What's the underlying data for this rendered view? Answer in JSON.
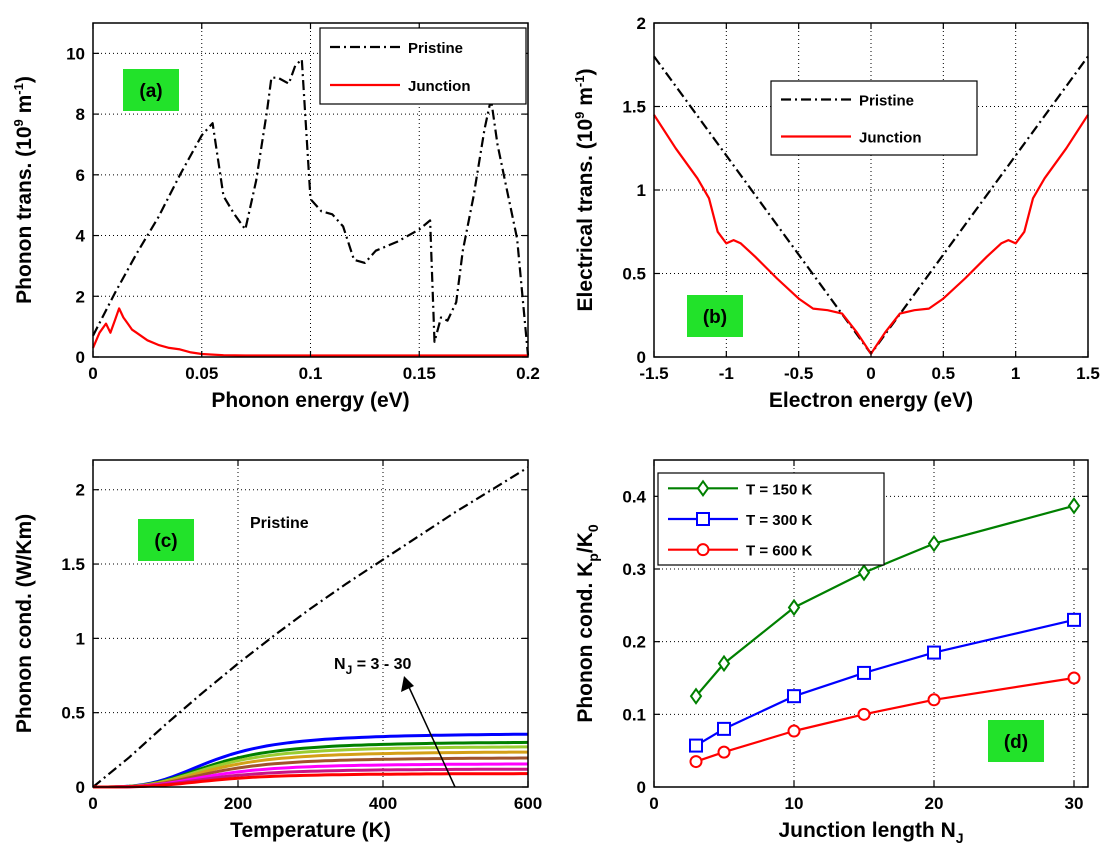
{
  "chart_data": [
    {
      "id": "a",
      "type": "line",
      "panel_label": "(a)",
      "xlabel": "Phonon energy (eV)",
      "ylabel": "Phonon trans. (10^9 m^-1)",
      "ylabel_parts": {
        "main": "Phonon trans. (10",
        "exp1": "9",
        "mid": " m",
        "exp2": "-1",
        "end": ")"
      },
      "xlim": [
        0,
        0.2
      ],
      "ylim": [
        0,
        11
      ],
      "xticks": [
        0,
        0.05,
        0.1,
        0.15,
        0.2
      ],
      "xtick_labels": [
        "0",
        "0.05",
        "0.1",
        "0.15",
        "0.2"
      ],
      "yticks": [
        0,
        2,
        4,
        6,
        8,
        10
      ],
      "ytick_labels": [
        "0",
        "2",
        "4",
        "6",
        "8",
        "10"
      ],
      "grid": true,
      "legend_position": "top-right",
      "series": [
        {
          "name": "Pristine",
          "color": "#000000",
          "dash": "dashdot",
          "x": [
            0,
            0.005,
            0.01,
            0.02,
            0.03,
            0.04,
            0.05,
            0.055,
            0.06,
            0.065,
            0.07,
            0.075,
            0.08,
            0.082,
            0.085,
            0.09,
            0.093,
            0.096,
            0.1,
            0.105,
            0.11,
            0.115,
            0.12,
            0.125,
            0.13,
            0.14,
            0.15,
            0.155,
            0.157,
            0.16,
            0.163,
            0.167,
            0.17,
            0.175,
            0.18,
            0.183,
            0.186,
            0.19,
            0.195,
            0.2
          ],
          "y": [
            0.7,
            1.4,
            2.1,
            3.4,
            4.6,
            6.0,
            7.3,
            7.7,
            5.3,
            4.7,
            4.2,
            5.8,
            8.1,
            9.2,
            9.2,
            9.0,
            9.6,
            9.8,
            5.2,
            4.8,
            4.7,
            4.3,
            3.2,
            3.1,
            3.5,
            3.8,
            4.2,
            4.5,
            0.5,
            1.3,
            1.2,
            1.8,
            3.5,
            5.3,
            7.5,
            8.5,
            7.0,
            5.6,
            3.9,
            0.05
          ]
        },
        {
          "name": "Junction",
          "color": "#ff0000",
          "dash": "solid",
          "x": [
            0,
            0.003,
            0.006,
            0.008,
            0.01,
            0.012,
            0.014,
            0.016,
            0.018,
            0.02,
            0.025,
            0.03,
            0.035,
            0.04,
            0.045,
            0.05,
            0.055,
            0.06,
            0.07,
            0.1,
            0.15,
            0.2
          ],
          "y": [
            0.3,
            0.8,
            1.1,
            0.8,
            1.2,
            1.6,
            1.3,
            1.1,
            0.9,
            0.8,
            0.55,
            0.4,
            0.3,
            0.25,
            0.15,
            0.1,
            0.08,
            0.06,
            0.05,
            0.05,
            0.05,
            0.05
          ]
        }
      ]
    },
    {
      "id": "b",
      "type": "line",
      "panel_label": "(b)",
      "xlabel": "Electron energy (eV)",
      "ylabel": "Electrical trans. (10^9 m^-1)",
      "ylabel_parts": {
        "main": "Electrical trans. (10",
        "exp1": "9",
        "mid": " m",
        "exp2": "-1",
        "end": ")"
      },
      "xlim": [
        -1.5,
        1.5
      ],
      "ylim": [
        0,
        2
      ],
      "xticks": [
        -1.5,
        -1,
        -0.5,
        0,
        0.5,
        1,
        1.5
      ],
      "xtick_labels": [
        "-1.5",
        "-1",
        "-0.5",
        "0",
        "0.5",
        "1",
        "1.5"
      ],
      "yticks": [
        0,
        0.5,
        1,
        1.5,
        2
      ],
      "ytick_labels": [
        "0",
        "0.5",
        "1",
        "1.5",
        "2"
      ],
      "grid": true,
      "legend_position": "top-right",
      "series": [
        {
          "name": "Pristine",
          "color": "#000000",
          "dash": "dashdot",
          "x": [
            -1.5,
            0,
            1.5
          ],
          "y": [
            1.8,
            0.02,
            1.8
          ]
        },
        {
          "name": "Junction",
          "color": "#ff0000",
          "dash": "solid",
          "x": [
            -1.5,
            -1.35,
            -1.2,
            -1.12,
            -1.06,
            -1.0,
            -0.95,
            -0.9,
            -0.8,
            -0.65,
            -0.5,
            -0.4,
            -0.3,
            -0.2,
            -0.1,
            0,
            0.1,
            0.2,
            0.3,
            0.4,
            0.5,
            0.65,
            0.8,
            0.9,
            0.95,
            1.0,
            1.06,
            1.12,
            1.2,
            1.35,
            1.5
          ],
          "y": [
            1.45,
            1.25,
            1.07,
            0.95,
            0.75,
            0.68,
            0.7,
            0.68,
            0.6,
            0.47,
            0.35,
            0.29,
            0.28,
            0.26,
            0.15,
            0.02,
            0.15,
            0.26,
            0.28,
            0.29,
            0.35,
            0.47,
            0.6,
            0.68,
            0.7,
            0.68,
            0.75,
            0.95,
            1.07,
            1.25,
            1.45
          ]
        }
      ]
    },
    {
      "id": "c",
      "type": "line",
      "panel_label": "(c)",
      "xlabel": "Temperature (K)",
      "ylabel": "Phonon cond. (W/Km)",
      "xlim": [
        0,
        600
      ],
      "ylim": [
        0,
        2.2
      ],
      "xticks": [
        0,
        200,
        400,
        600
      ],
      "xtick_labels": [
        "0",
        "200",
        "400",
        "600"
      ],
      "yticks": [
        0,
        0.5,
        1,
        1.5,
        2
      ],
      "ytick_labels": [
        "0",
        "0.5",
        "1",
        "1.5",
        "2"
      ],
      "grid": true,
      "text_labels": [
        "Pristine"
      ],
      "arrow_annotation": {
        "text": "N_J = 3 - 30",
        "prefix": "N",
        "sub": "J",
        "suffix": " = 3 - 30"
      },
      "series": [
        {
          "name": "Pristine",
          "color": "#000000",
          "dash": "dashdot",
          "x": [
            0,
            50,
            100,
            150,
            200,
            250,
            300,
            350,
            400,
            450,
            500,
            550,
            600
          ],
          "y": [
            0,
            0.2,
            0.42,
            0.63,
            0.83,
            1.02,
            1.2,
            1.37,
            1.53,
            1.69,
            1.85,
            2.0,
            2.15
          ]
        },
        {
          "name": "N_J = 3",
          "color": "#0000ff",
          "dash": "solid",
          "plateau": 0.355
        },
        {
          "name": "",
          "color": "#008000",
          "dash": "solid",
          "plateau": 0.3
        },
        {
          "name": "",
          "color": "#9acd32",
          "dash": "solid",
          "plateau": 0.27
        },
        {
          "name": "",
          "color": "#d4a017",
          "dash": "solid",
          "plateau": 0.235
        },
        {
          "name": "",
          "color": "#a0522d",
          "dash": "solid",
          "plateau": 0.195
        },
        {
          "name": "",
          "color": "#ff00ff",
          "dash": "solid",
          "plateau": 0.155
        },
        {
          "name": "",
          "color": "#c71585",
          "dash": "solid",
          "plateau": 0.12
        },
        {
          "name": "N_J = 30",
          "color": "#ff0000",
          "dash": "solid",
          "plateau": 0.09
        }
      ]
    },
    {
      "id": "d",
      "type": "line",
      "panel_label": "(d)",
      "xlabel": "Junction length N_J",
      "xlabel_parts": {
        "main": "Junction length N",
        "sub": "J"
      },
      "ylabel": "Phonon cond. K_p/K_0",
      "ylabel_parts": {
        "main": "Phonon cond. K",
        "sub1": "p",
        "mid": "/K",
        "sub2": "0"
      },
      "xlim": [
        0,
        31
      ],
      "ylim": [
        0,
        0.45
      ],
      "xticks": [
        0,
        10,
        20,
        30
      ],
      "xtick_labels": [
        "0",
        "10",
        "20",
        "30"
      ],
      "yticks": [
        0,
        0.1,
        0.2,
        0.3,
        0.4
      ],
      "ytick_labels": [
        "0",
        "0.1",
        "0.2",
        "0.3",
        "0.4"
      ],
      "grid": true,
      "legend_position": "top-left",
      "series": [
        {
          "name": "T = 150 K",
          "color": "#008000",
          "marker": "diamond",
          "x": [
            3,
            5,
            10,
            15,
            20,
            30
          ],
          "y": [
            0.125,
            0.17,
            0.247,
            0.295,
            0.335,
            0.387
          ]
        },
        {
          "name": "T = 300 K",
          "color": "#0000ff",
          "marker": "square",
          "x": [
            3,
            5,
            10,
            15,
            20,
            30
          ],
          "y": [
            0.057,
            0.08,
            0.125,
            0.157,
            0.185,
            0.23
          ]
        },
        {
          "name": "T = 600 K",
          "color": "#ff0000",
          "marker": "circle",
          "x": [
            3,
            5,
            10,
            15,
            20,
            30
          ],
          "y": [
            0.035,
            0.048,
            0.077,
            0.1,
            0.12,
            0.15
          ]
        }
      ]
    }
  ]
}
